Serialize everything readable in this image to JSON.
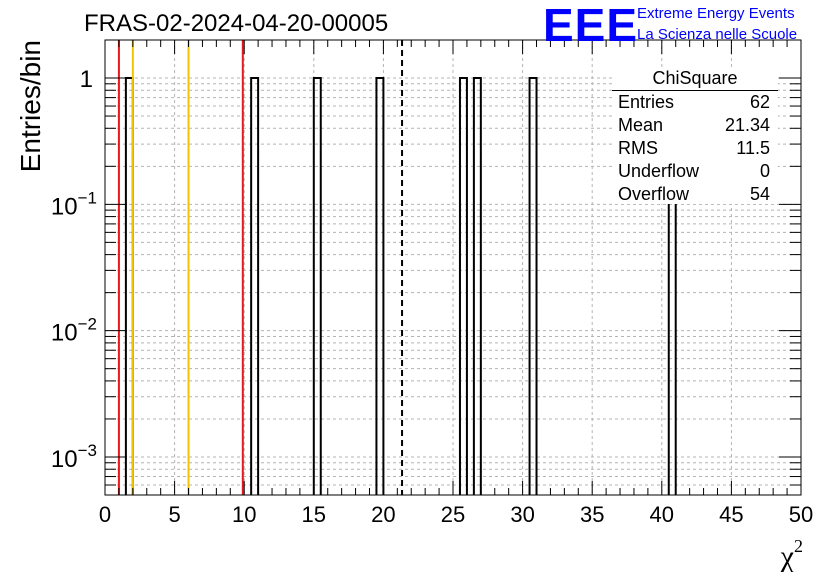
{
  "header": {
    "title": "FRAS-02-2024-04-20-00005"
  },
  "logo": {
    "mark": "EEE",
    "line1": "Extreme Energy Events",
    "line2": "La Scienza nelle Scuole"
  },
  "stats": {
    "name": "ChiSquare",
    "rows": [
      {
        "label": "Entries",
        "value": "62"
      },
      {
        "label": "Mean",
        "value": "21.34"
      },
      {
        "label": "RMS",
        "value": "11.5"
      },
      {
        "label": "Underflow",
        "value": "0"
      },
      {
        "label": "Overflow",
        "value": "54"
      }
    ]
  },
  "chart_data": {
    "type": "bar",
    "title": "FRAS-02-2024-04-20-00005",
    "xlabel": "χ²",
    "ylabel": "Entries/bin",
    "xlim": [
      0,
      50
    ],
    "ylim": [
      0.0005,
      2
    ],
    "y_scale": "log",
    "grid": true,
    "x_ticks": [
      "0",
      "5",
      "10",
      "15",
      "20",
      "25",
      "30",
      "35",
      "40",
      "45",
      "50"
    ],
    "y_ticks": [
      {
        "value": 1,
        "label": "1"
      },
      {
        "value": 0.1,
        "label": "10",
        "exp": "−1"
      },
      {
        "value": 0.01,
        "label": "10",
        "exp": "−2"
      },
      {
        "value": 0.001,
        "label": "10",
        "exp": "−3"
      }
    ],
    "bins": [
      {
        "x0": 1.5,
        "x1": 2.0,
        "value": 1
      },
      {
        "x0": 10.5,
        "x1": 11.0,
        "value": 1
      },
      {
        "x0": 15.0,
        "x1": 15.5,
        "value": 1
      },
      {
        "x0": 19.5,
        "x1": 20.0,
        "value": 1
      },
      {
        "x0": 25.5,
        "x1": 26.0,
        "value": 1
      },
      {
        "x0": 26.5,
        "x1": 27.0,
        "value": 1
      },
      {
        "x0": 30.5,
        "x1": 31.0,
        "value": 1
      },
      {
        "x0": 40.5,
        "x1": 41.0,
        "value": 1
      }
    ],
    "vertical_lines": [
      {
        "x": 1.0,
        "color": "#e8191c",
        "style": "solid"
      },
      {
        "x": 2.0,
        "color": "#f5c400",
        "style": "solid"
      },
      {
        "x": 6.0,
        "color": "#f5c400",
        "style": "solid"
      },
      {
        "x": 9.9,
        "color": "#e8191c",
        "style": "solid"
      },
      {
        "x": 21.34,
        "color": "#000000",
        "style": "dashed"
      }
    ],
    "legend": "top-right"
  }
}
